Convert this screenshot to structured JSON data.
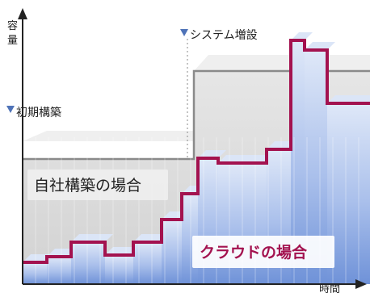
{
  "labels": {
    "y_axis": "容量",
    "x_axis": "時間",
    "initial_build": "初期構築",
    "system_expansion": "システム増設",
    "on_premise_case": "自社構築の場合",
    "cloud_case": "クラウドの場合"
  },
  "colors": {
    "step_line": "#a3124f",
    "axis": "#222222",
    "marker": "#4f73b8",
    "gray_band": "#cfcfcf",
    "gray_line": "#8a8a8a",
    "cloud_fill_top": "#d7e2f6",
    "cloud_fill_bottom": "#6c8fd6",
    "cloud_text": "#a3124f"
  },
  "icons": [
    "arrow-up-icon",
    "arrow-right-icon",
    "triangle-down-marker-icon"
  ]
}
